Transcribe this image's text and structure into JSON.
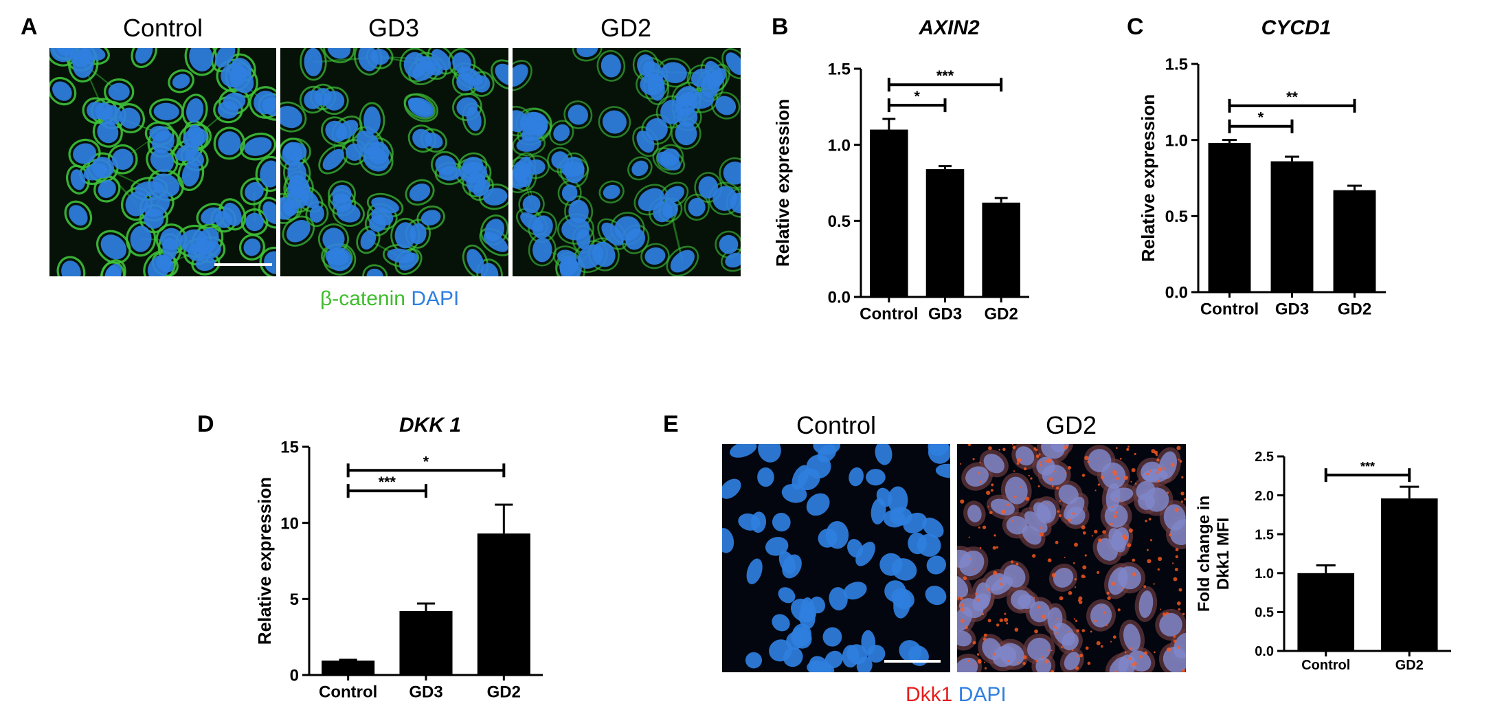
{
  "figure": {
    "panel_labels": {
      "A": "A",
      "B": "B",
      "C": "C",
      "D": "D",
      "E": "E"
    },
    "panel_A": {
      "image_titles": [
        "Control",
        "GD3",
        "GD2"
      ],
      "stain_legend": {
        "marker": "β-catenin",
        "counterstain": "DAPI"
      }
    },
    "panel_E": {
      "image_titles": [
        "Control",
        "GD2"
      ],
      "stain_legend": {
        "marker": "Dkk1",
        "counterstain": "DAPI"
      }
    },
    "colors": {
      "beta_catenin": "#3ebd2c",
      "dapi": "#2f7fe0",
      "dkk1": "#e51d1d",
      "bars": "#000000"
    }
  },
  "chart_data": [
    {
      "id": "B",
      "type": "bar",
      "title": "AXIN2",
      "ylabel": "Relative expression",
      "categories": [
        "Control",
        "GD3",
        "GD2"
      ],
      "values": [
        1.1,
        0.84,
        0.62
      ],
      "errors": [
        0.07,
        0.02,
        0.03
      ],
      "ylim": [
        0,
        1.5
      ],
      "yticks": [
        0.0,
        0.5,
        1.0,
        1.5
      ],
      "ytick_labels": [
        "0.0",
        "0.5",
        "1.0",
        "1.5"
      ],
      "significance": [
        {
          "from": "Control",
          "to": "GD3",
          "label": "*"
        },
        {
          "from": "Control",
          "to": "GD2",
          "label": "***"
        }
      ]
    },
    {
      "id": "C",
      "type": "bar",
      "title": "CYCD1",
      "ylabel": "Relative expression",
      "categories": [
        "Control",
        "GD3",
        "GD2"
      ],
      "values": [
        0.98,
        0.86,
        0.67
      ],
      "errors": [
        0.02,
        0.03,
        0.03
      ],
      "ylim": [
        0,
        1.5
      ],
      "yticks": [
        0.0,
        0.5,
        1.0,
        1.5
      ],
      "ytick_labels": [
        "0.0",
        "0.5",
        "1.0",
        "1.5"
      ],
      "significance": [
        {
          "from": "Control",
          "to": "GD3",
          "label": "*"
        },
        {
          "from": "Control",
          "to": "GD2",
          "label": "**"
        }
      ]
    },
    {
      "id": "D",
      "type": "bar",
      "title": "DKK 1",
      "ylabel": "Relative expression",
      "categories": [
        "Control",
        "GD3",
        "GD2"
      ],
      "values": [
        0.95,
        4.2,
        9.3
      ],
      "errors": [
        0.05,
        0.5,
        1.9
      ],
      "ylim": [
        0,
        15
      ],
      "yticks": [
        0,
        5,
        10,
        15
      ],
      "ytick_labels": [
        "0",
        "5",
        "10",
        "15"
      ],
      "significance": [
        {
          "from": "Control",
          "to": "GD3",
          "label": "***"
        },
        {
          "from": "Control",
          "to": "GD2",
          "label": "*"
        }
      ]
    },
    {
      "id": "E",
      "type": "bar",
      "title": "",
      "ylabel": "Fold change in Dkk1 MFI",
      "ylabel_lines": [
        "Fold change in",
        "Dkk1 MFI"
      ],
      "categories": [
        "Control",
        "GD2"
      ],
      "values": [
        1.0,
        1.96
      ],
      "errors": [
        0.1,
        0.15
      ],
      "ylim": [
        0,
        2.5
      ],
      "yticks": [
        0.0,
        0.5,
        1.0,
        1.5,
        2.0,
        2.5
      ],
      "ytick_labels": [
        "0.0",
        "0.5",
        "1.0",
        "1.5",
        "2.0",
        "2.5"
      ],
      "significance": [
        {
          "from": "Control",
          "to": "GD2",
          "label": "***"
        }
      ]
    }
  ]
}
